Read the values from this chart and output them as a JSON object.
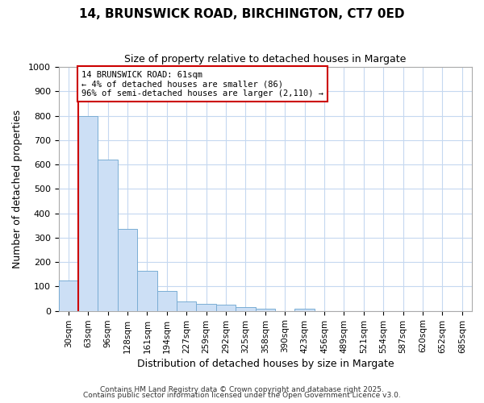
{
  "title1": "14, BRUNSWICK ROAD, BIRCHINGTON, CT7 0ED",
  "title2": "Size of property relative to detached houses in Margate",
  "xlabel": "Distribution of detached houses by size in Margate",
  "ylabel": "Number of detached properties",
  "bar_labels": [
    "30sqm",
    "63sqm",
    "96sqm",
    "128sqm",
    "161sqm",
    "194sqm",
    "227sqm",
    "259sqm",
    "292sqm",
    "325sqm",
    "358sqm",
    "390sqm",
    "423sqm",
    "456sqm",
    "489sqm",
    "521sqm",
    "554sqm",
    "587sqm",
    "620sqm",
    "652sqm",
    "685sqm"
  ],
  "bar_values": [
    125,
    800,
    620,
    335,
    165,
    82,
    40,
    28,
    25,
    15,
    10,
    0,
    8,
    0,
    0,
    0,
    0,
    0,
    0,
    0,
    0
  ],
  "bar_color": "#ccdff5",
  "bar_edge_color": "#7aadd4",
  "red_line_x": 1,
  "annotation_line1": "14 BRUNSWICK ROAD: 61sqm",
  "annotation_line2": "← 4% of detached houses are smaller (86)",
  "annotation_line3": "96% of semi-detached houses are larger (2,110) →",
  "annotation_box_color": "#ffffff",
  "annotation_edge_color": "#cc0000",
  "ylim": [
    0,
    1000
  ],
  "yticks": [
    0,
    100,
    200,
    300,
    400,
    500,
    600,
    700,
    800,
    900,
    1000
  ],
  "footer1": "Contains HM Land Registry data © Crown copyright and database right 2025.",
  "footer2": "Contains public sector information licensed under the Open Government Licence v3.0.",
  "background_color": "#ffffff",
  "grid_color": "#c5d8f0",
  "title1_fontsize": 11,
  "title2_fontsize": 9
}
